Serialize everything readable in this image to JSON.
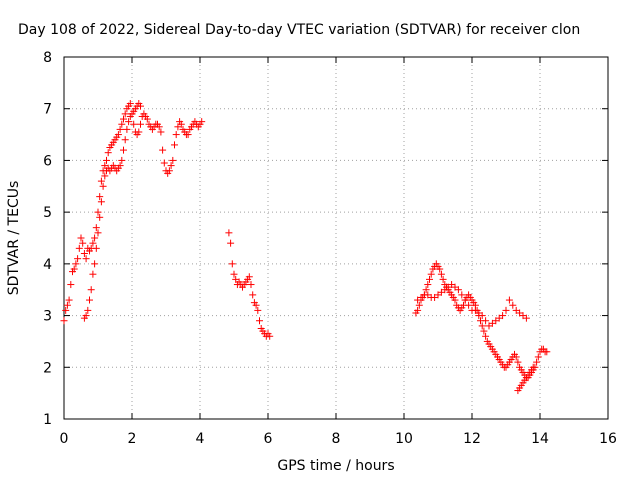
{
  "chart_data": {
    "type": "scatter",
    "title": "Day 108 of 2022, Sidereal Day-to-day VTEC variation (SDTVAR) for receiver clon",
    "xlabel": "GPS time / hours",
    "ylabel": "SDTVAR / TECUs",
    "xlim": [
      0,
      16
    ],
    "ylim": [
      1,
      8
    ],
    "xticks": [
      "0",
      "2",
      "4",
      "6",
      "8",
      "10",
      "12",
      "14",
      "16"
    ],
    "yticks": [
      "1",
      "2",
      "3",
      "4",
      "5",
      "6",
      "7",
      "8"
    ],
    "grid": true,
    "marker": "+",
    "color": "#ff0000",
    "series": [
      {
        "x": [
          0.0,
          0.05,
          0.1,
          0.15,
          0.2,
          0.25,
          0.3,
          0.35,
          0.4,
          0.45,
          0.5,
          0.55,
          0.6,
          0.65,
          0.7,
          0.75,
          0.8,
          0.85,
          0.9,
          0.95,
          1.0,
          1.05,
          1.1,
          1.15,
          1.2,
          1.25,
          1.3,
          1.35,
          1.4,
          1.45,
          1.5,
          1.55,
          1.6,
          1.65,
          1.7,
          1.75,
          1.8,
          1.85,
          1.9,
          1.95,
          2.0,
          2.05,
          2.1,
          2.15,
          2.2,
          2.25,
          2.3,
          2.35,
          2.4,
          2.45,
          2.5,
          2.55,
          2.6,
          2.65,
          2.7,
          2.75,
          2.8,
          2.85,
          2.9,
          2.95,
          3.0,
          3.05,
          3.1,
          3.15,
          3.2,
          3.25,
          3.3,
          3.35,
          3.4,
          3.45,
          3.5,
          3.55,
          3.6,
          3.65,
          3.7,
          3.75,
          3.8,
          3.85,
          3.9,
          3.95,
          4.0,
          4.05
        ],
        "y": [
          2.9,
          3.1,
          3.2,
          3.3,
          3.6,
          3.85,
          3.9,
          4.0,
          4.1,
          4.3,
          4.5,
          4.4,
          4.2,
          4.1,
          4.3,
          4.25,
          4.3,
          4.4,
          4.5,
          4.7,
          5.0,
          5.3,
          5.6,
          5.8,
          5.9,
          6.0,
          6.15,
          6.25,
          6.3,
          6.35,
          6.4,
          6.45,
          6.5,
          6.6,
          6.7,
          6.8,
          6.9,
          7.0,
          7.05,
          7.1,
          6.9,
          6.7,
          6.55,
          6.5,
          6.55,
          6.7,
          6.85,
          6.9,
          6.85,
          6.8,
          6.7,
          6.65,
          6.6,
          6.65,
          6.7,
          6.7,
          6.65,
          6.55,
          6.2,
          5.95,
          5.8,
          5.75,
          5.8,
          5.9,
          6.0,
          6.3,
          6.5,
          6.65,
          6.75,
          6.7,
          6.6,
          6.55,
          6.5,
          6.5,
          6.6,
          6.65,
          6.7,
          6.75,
          6.7,
          6.65,
          6.7,
          6.75
        ]
      },
      {
        "x": [
          0.6,
          0.65,
          0.7,
          0.75,
          0.8,
          0.85,
          0.9,
          0.95,
          1.0,
          1.05,
          1.1,
          1.15,
          1.2,
          1.25,
          1.3,
          1.35,
          1.4,
          1.45,
          1.5,
          1.55,
          1.6,
          1.65,
          1.7,
          1.75,
          1.8,
          1.85,
          1.9,
          1.95,
          2.0,
          2.05,
          2.1,
          2.15,
          2.2,
          2.25
        ],
        "y": [
          2.95,
          3.0,
          3.1,
          3.3,
          3.5,
          3.8,
          4.0,
          4.3,
          4.6,
          4.9,
          5.2,
          5.5,
          5.7,
          5.8,
          5.85,
          5.8,
          5.85,
          5.9,
          5.85,
          5.8,
          5.85,
          5.9,
          6.0,
          6.2,
          6.4,
          6.6,
          6.75,
          6.85,
          6.9,
          6.95,
          7.0,
          7.05,
          7.1,
          7.05
        ]
      },
      {
        "x": [
          4.85,
          4.9,
          4.95,
          5.0,
          5.05,
          5.1,
          5.15,
          5.2,
          5.25,
          5.3,
          5.35,
          5.4,
          5.45,
          5.5,
          5.55,
          5.6,
          5.65,
          5.7,
          5.75,
          5.8,
          5.85,
          5.9,
          5.95,
          6.0,
          6.05
        ],
        "y": [
          4.6,
          4.4,
          4.0,
          3.8,
          3.7,
          3.6,
          3.65,
          3.6,
          3.55,
          3.6,
          3.65,
          3.7,
          3.75,
          3.6,
          3.4,
          3.25,
          3.2,
          3.1,
          2.9,
          2.75,
          2.7,
          2.65,
          2.6,
          2.65,
          2.6
        ]
      },
      {
        "x": [
          10.35,
          10.4,
          10.45,
          10.5,
          10.55,
          10.6,
          10.65,
          10.7,
          10.75,
          10.8,
          10.85,
          10.9,
          10.95,
          11.0,
          11.05,
          11.1,
          11.15,
          11.2,
          11.25,
          11.3,
          11.35,
          11.4,
          11.45,
          11.5,
          11.55,
          11.6,
          11.65,
          11.7,
          11.75,
          11.8,
          11.85,
          11.9,
          11.95,
          12.0,
          12.05,
          12.1,
          12.15,
          12.2,
          12.25,
          12.3,
          12.35,
          12.4,
          12.45,
          12.5,
          12.55,
          12.6,
          12.65,
          12.7,
          12.75,
          12.8,
          12.85,
          12.9,
          12.95,
          13.0,
          13.05,
          13.1,
          13.15,
          13.2,
          13.25,
          13.3,
          13.35,
          13.4,
          13.45,
          13.5,
          13.55,
          13.6,
          13.65,
          13.7,
          13.75,
          13.8,
          13.85,
          13.9,
          13.95,
          14.0,
          14.05,
          14.1,
          14.15,
          14.2
        ],
        "y": [
          3.05,
          3.1,
          3.2,
          3.3,
          3.35,
          3.4,
          3.5,
          3.6,
          3.7,
          3.8,
          3.9,
          3.95,
          4.0,
          3.95,
          3.9,
          3.8,
          3.7,
          3.6,
          3.55,
          3.5,
          3.45,
          3.4,
          3.35,
          3.3,
          3.2,
          3.15,
          3.1,
          3.15,
          3.2,
          3.3,
          3.35,
          3.4,
          3.35,
          3.3,
          3.25,
          3.2,
          3.1,
          3.0,
          2.9,
          2.8,
          2.7,
          2.6,
          2.5,
          2.45,
          2.4,
          2.35,
          2.3,
          2.25,
          2.2,
          2.15,
          2.1,
          2.05,
          2.0,
          2.0,
          2.05,
          2.1,
          2.15,
          2.2,
          2.25,
          2.2,
          2.1,
          2.0,
          1.95,
          1.9,
          1.85,
          1.8,
          1.8,
          1.85,
          1.9,
          1.95,
          2.0,
          2.1,
          2.2,
          2.3,
          2.35,
          2.35,
          2.3,
          2.3
        ]
      },
      {
        "x": [
          10.4,
          10.5,
          10.6,
          10.7,
          10.8,
          10.9,
          11.0,
          11.1,
          11.2,
          11.3,
          11.4,
          11.5,
          11.6,
          11.7,
          11.8,
          11.9,
          12.0,
          12.1,
          12.2,
          12.3,
          12.4,
          12.5,
          12.6,
          12.7,
          12.8,
          12.9,
          13.0,
          13.1,
          13.2,
          13.3,
          13.4,
          13.5,
          13.6
        ],
        "y": [
          3.3,
          3.35,
          3.4,
          3.4,
          3.35,
          3.35,
          3.4,
          3.45,
          3.5,
          3.55,
          3.6,
          3.55,
          3.5,
          3.4,
          3.3,
          3.2,
          3.1,
          3.1,
          3.05,
          3.0,
          2.9,
          2.8,
          2.85,
          2.9,
          2.95,
          3.0,
          3.1,
          3.3,
          3.2,
          3.1,
          3.05,
          3.0,
          2.95
        ]
      },
      {
        "x": [
          13.35,
          13.4,
          13.45,
          13.5,
          13.55,
          13.6,
          13.65,
          13.7,
          13.75,
          13.8
        ],
        "y": [
          1.55,
          1.6,
          1.65,
          1.7,
          1.75,
          1.8,
          1.85,
          1.9,
          1.95,
          2.0
        ]
      }
    ]
  }
}
